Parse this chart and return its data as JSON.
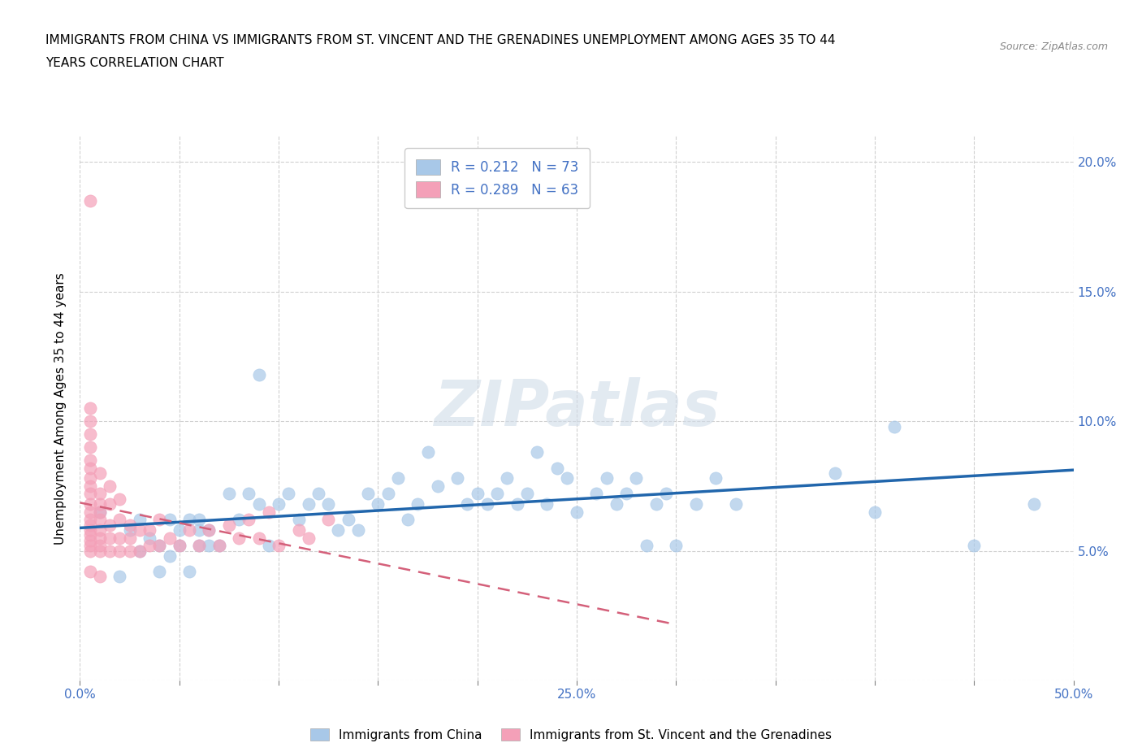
{
  "title_line1": "IMMIGRANTS FROM CHINA VS IMMIGRANTS FROM ST. VINCENT AND THE GRENADINES UNEMPLOYMENT AMONG AGES 35 TO 44",
  "title_line2": "YEARS CORRELATION CHART",
  "source": "Source: ZipAtlas.com",
  "ylabel": "Unemployment Among Ages 35 to 44 years",
  "xlim": [
    0.0,
    0.5
  ],
  "ylim": [
    0.0,
    0.21
  ],
  "xticks": [
    0.0,
    0.05,
    0.1,
    0.15,
    0.2,
    0.25,
    0.3,
    0.35,
    0.4,
    0.45,
    0.5
  ],
  "xticklabels": [
    "0.0%",
    "",
    "",
    "",
    "",
    "25.0%",
    "",
    "",
    "",
    "",
    "50.0%"
  ],
  "yticks_left": [],
  "ytick_vals": [
    0.0,
    0.05,
    0.1,
    0.15,
    0.2
  ],
  "yticklabels_right": [
    "",
    "5.0%",
    "10.0%",
    "15.0%",
    "20.0%"
  ],
  "china_color": "#a8c8e8",
  "svg_color": "#f4a0b8",
  "trend_china_color": "#2166ac",
  "trend_svg_color": "#d4607a",
  "R_china": 0.212,
  "N_china": 73,
  "R_svg": 0.289,
  "N_svg": 63,
  "legend_label_china": "Immigrants from China",
  "legend_label_svg": "Immigrants from St. Vincent and the Grenadines",
  "watermark": "ZIPatlas",
  "china_x": [
    0.01,
    0.02,
    0.025,
    0.03,
    0.03,
    0.035,
    0.04,
    0.04,
    0.045,
    0.045,
    0.05,
    0.05,
    0.055,
    0.055,
    0.06,
    0.06,
    0.06,
    0.065,
    0.065,
    0.07,
    0.075,
    0.08,
    0.085,
    0.09,
    0.09,
    0.095,
    0.1,
    0.105,
    0.11,
    0.115,
    0.12,
    0.125,
    0.13,
    0.135,
    0.14,
    0.145,
    0.15,
    0.155,
    0.16,
    0.165,
    0.17,
    0.175,
    0.18,
    0.19,
    0.195,
    0.2,
    0.205,
    0.21,
    0.215,
    0.22,
    0.225,
    0.23,
    0.235,
    0.24,
    0.245,
    0.25,
    0.26,
    0.265,
    0.27,
    0.275,
    0.28,
    0.285,
    0.29,
    0.295,
    0.3,
    0.31,
    0.32,
    0.33,
    0.38,
    0.4,
    0.41,
    0.45,
    0.48
  ],
  "china_y": [
    0.065,
    0.04,
    0.058,
    0.05,
    0.062,
    0.055,
    0.042,
    0.052,
    0.062,
    0.048,
    0.052,
    0.058,
    0.042,
    0.062,
    0.052,
    0.058,
    0.062,
    0.052,
    0.058,
    0.052,
    0.072,
    0.062,
    0.072,
    0.068,
    0.118,
    0.052,
    0.068,
    0.072,
    0.062,
    0.068,
    0.072,
    0.068,
    0.058,
    0.062,
    0.058,
    0.072,
    0.068,
    0.072,
    0.078,
    0.062,
    0.068,
    0.088,
    0.075,
    0.078,
    0.068,
    0.072,
    0.068,
    0.072,
    0.078,
    0.068,
    0.072,
    0.088,
    0.068,
    0.082,
    0.078,
    0.065,
    0.072,
    0.078,
    0.068,
    0.072,
    0.078,
    0.052,
    0.068,
    0.072,
    0.052,
    0.068,
    0.078,
    0.068,
    0.08,
    0.065,
    0.098,
    0.052,
    0.068
  ],
  "svg_x": [
    0.005,
    0.005,
    0.005,
    0.005,
    0.005,
    0.005,
    0.005,
    0.005,
    0.005,
    0.005,
    0.005,
    0.005,
    0.005,
    0.005,
    0.005,
    0.005,
    0.005,
    0.005,
    0.005,
    0.005,
    0.01,
    0.01,
    0.01,
    0.01,
    0.01,
    0.01,
    0.01,
    0.01,
    0.01,
    0.01,
    0.015,
    0.015,
    0.015,
    0.015,
    0.015,
    0.02,
    0.02,
    0.02,
    0.02,
    0.025,
    0.025,
    0.025,
    0.03,
    0.03,
    0.035,
    0.035,
    0.04,
    0.04,
    0.045,
    0.05,
    0.055,
    0.06,
    0.065,
    0.07,
    0.075,
    0.08,
    0.085,
    0.09,
    0.095,
    0.1,
    0.11,
    0.115,
    0.125
  ],
  "svg_y": [
    0.05,
    0.052,
    0.054,
    0.056,
    0.058,
    0.06,
    0.062,
    0.065,
    0.068,
    0.072,
    0.075,
    0.078,
    0.082,
    0.085,
    0.09,
    0.095,
    0.1,
    0.105,
    0.185,
    0.042,
    0.05,
    0.052,
    0.055,
    0.058,
    0.062,
    0.065,
    0.068,
    0.072,
    0.08,
    0.04,
    0.05,
    0.055,
    0.06,
    0.068,
    0.075,
    0.05,
    0.055,
    0.062,
    0.07,
    0.05,
    0.055,
    0.06,
    0.05,
    0.058,
    0.052,
    0.058,
    0.052,
    0.062,
    0.055,
    0.052,
    0.058,
    0.052,
    0.058,
    0.052,
    0.06,
    0.055,
    0.062,
    0.055,
    0.065,
    0.052,
    0.058,
    0.055,
    0.062
  ]
}
